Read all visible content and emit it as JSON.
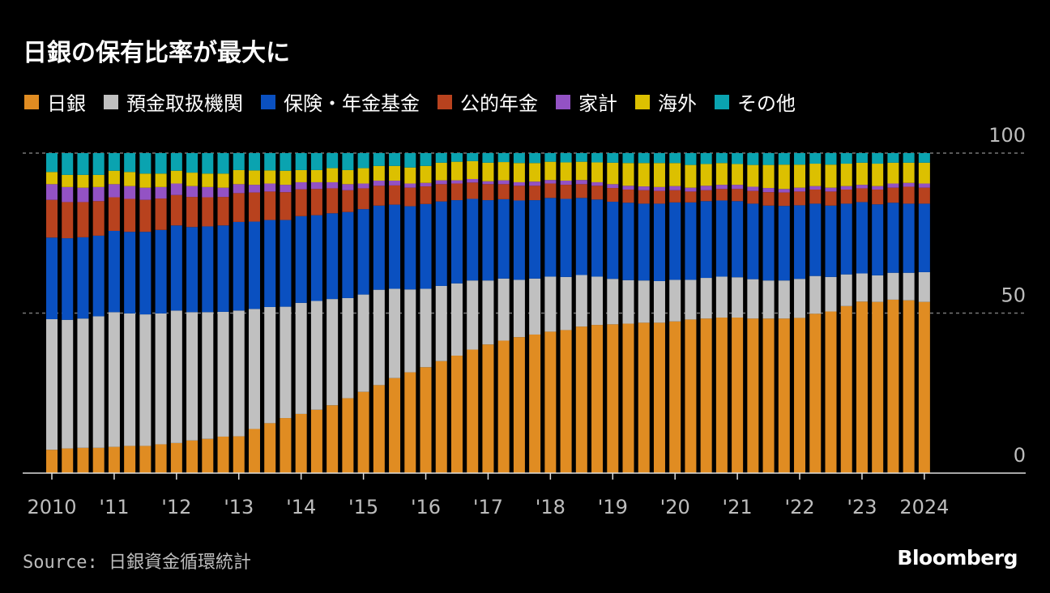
{
  "title": "日銀の保有比率が最大に",
  "source": "Source: 日銀資金循環統計",
  "logo": "Bloomberg",
  "chart_data": {
    "type": "bar",
    "stacked": true,
    "title": "日銀の保有比率が最大に",
    "xlabel": "",
    "ylabel": "",
    "ylim": [
      0,
      100
    ],
    "yticks": [
      "0",
      "50",
      "100"
    ],
    "grid": true,
    "legend": "top",
    "xtick_labels": [
      "2010",
      "'11",
      "'12",
      "'13",
      "'14",
      "'15",
      "'16",
      "'17",
      "'18",
      "'19",
      "'20",
      "'21",
      "'22",
      "'23",
      "2024"
    ],
    "categories": [
      "2010Q1",
      "2010Q2",
      "2010Q3",
      "2010Q4",
      "2011Q1",
      "2011Q2",
      "2011Q3",
      "2011Q4",
      "2012Q1",
      "2012Q2",
      "2012Q3",
      "2012Q4",
      "2013Q1",
      "2013Q2",
      "2013Q3",
      "2013Q4",
      "2014Q1",
      "2014Q2",
      "2014Q3",
      "2014Q4",
      "2015Q1",
      "2015Q2",
      "2015Q3",
      "2015Q4",
      "2016Q1",
      "2016Q2",
      "2016Q3",
      "2016Q4",
      "2017Q1",
      "2017Q2",
      "2017Q3",
      "2017Q4",
      "2018Q1",
      "2018Q2",
      "2018Q3",
      "2018Q4",
      "2019Q1",
      "2019Q2",
      "2019Q3",
      "2019Q4",
      "2020Q1",
      "2020Q2",
      "2020Q3",
      "2020Q4",
      "2021Q1",
      "2021Q2",
      "2021Q3",
      "2021Q4",
      "2022Q1",
      "2022Q2",
      "2022Q3",
      "2022Q4",
      "2023Q1",
      "2023Q2",
      "2023Q3",
      "2023Q4",
      "2024Q1"
    ],
    "series": [
      {
        "name": "日銀",
        "color": "#e08c22",
        "values": [
          7.3,
          7.7,
          7.9,
          7.9,
          8.2,
          8.5,
          8.5,
          9.0,
          9.4,
          10.2,
          10.7,
          11.4,
          11.5,
          13.8,
          15.6,
          17.2,
          18.5,
          19.8,
          21.2,
          23.4,
          25.4,
          27.5,
          29.7,
          31.5,
          33.1,
          35.0,
          36.7,
          38.6,
          40.2,
          41.4,
          42.5,
          43.3,
          44.2,
          44.7,
          45.8,
          46.3,
          46.5,
          46.7,
          47.0,
          47.0,
          47.4,
          48.0,
          48.3,
          48.6,
          48.6,
          48.3,
          48.3,
          48.3,
          48.5,
          49.8,
          50.5,
          52.2,
          53.6,
          53.5,
          54.2,
          54.0,
          53.5
        ]
      },
      {
        "name": "預金取扱機関",
        "color": "#c0c0c0",
        "values": [
          40.8,
          40.2,
          40.4,
          41.1,
          42.1,
          41.4,
          41.1,
          40.9,
          41.4,
          40.1,
          39.6,
          39.0,
          39.3,
          37.5,
          36.3,
          34.8,
          34.7,
          34.0,
          33.2,
          31.3,
          30.4,
          29.8,
          27.9,
          25.9,
          24.5,
          23.5,
          22.6,
          21.6,
          20.0,
          19.4,
          17.9,
          17.5,
          17.2,
          16.6,
          16.1,
          15.1,
          14.2,
          13.6,
          13.2,
          13.0,
          13.0,
          12.4,
          12.7,
          12.8,
          12.6,
          12.3,
          11.9,
          11.9,
          12.2,
          11.8,
          10.8,
          9.9,
          8.8,
          8.3,
          8.4,
          8.6,
          9.3
        ]
      },
      {
        "name": "保険・年金基金",
        "color": "#0a50c0",
        "values": [
          25.5,
          25.5,
          25.4,
          25.2,
          25.4,
          25.5,
          25.8,
          26.1,
          26.6,
          26.6,
          26.8,
          27.0,
          27.7,
          27.3,
          27.2,
          27.1,
          27.1,
          26.8,
          26.8,
          26.9,
          26.7,
          26.3,
          26.3,
          26.0,
          26.5,
          26.4,
          26.0,
          25.5,
          25.1,
          24.8,
          24.8,
          24.5,
          24.6,
          24.4,
          24.1,
          24.1,
          24.1,
          24.2,
          24.0,
          24.2,
          24.2,
          24.2,
          24.0,
          23.8,
          23.8,
          23.6,
          23.4,
          23.3,
          23.0,
          22.6,
          22.3,
          22.1,
          22.3,
          22.2,
          21.9,
          21.6,
          21.4
        ]
      },
      {
        "name": "公的年金",
        "color": "#b8421e",
        "values": [
          11.8,
          11.3,
          11.0,
          10.8,
          10.5,
          10.3,
          10.0,
          9.8,
          9.5,
          9.4,
          9.1,
          8.9,
          9.0,
          9.1,
          8.9,
          8.7,
          8.4,
          8.2,
          7.8,
          6.8,
          6.5,
          6.2,
          6.0,
          5.8,
          5.5,
          5.4,
          5.2,
          5.1,
          5.0,
          4.7,
          4.6,
          4.5,
          4.5,
          4.4,
          4.3,
          4.3,
          4.3,
          4.1,
          4.2,
          4.0,
          3.8,
          3.4,
          3.4,
          3.6,
          3.8,
          4.0,
          4.2,
          4.2,
          4.3,
          4.4,
          4.4,
          4.4,
          4.3,
          4.6,
          4.7,
          5.3,
          5.0
        ]
      },
      {
        "name": "家計",
        "color": "#9352c4",
        "values": [
          4.9,
          4.7,
          4.5,
          4.4,
          4.1,
          4.0,
          3.8,
          3.6,
          3.6,
          3.4,
          3.2,
          2.9,
          2.8,
          2.4,
          2.5,
          2.3,
          2.2,
          2.1,
          1.9,
          1.9,
          1.5,
          1.6,
          1.5,
          1.3,
          1.1,
          1.2,
          1.0,
          1.1,
          0.9,
          1.2,
          1.1,
          1.3,
          1.1,
          1.3,
          1.3,
          1.1,
          1.2,
          1.2,
          1.2,
          1.2,
          1.3,
          1.2,
          1.4,
          1.3,
          1.3,
          1.3,
          1.3,
          1.1,
          1.2,
          1.1,
          1.2,
          1.1,
          1.1,
          1.1,
          1.3,
          1.2,
          1.3
        ]
      },
      {
        "name": "海外",
        "color": "#dcc000",
        "values": [
          3.8,
          3.8,
          4.0,
          3.8,
          4.2,
          4.4,
          4.4,
          4.2,
          4.0,
          4.2,
          4.2,
          4.4,
          4.4,
          4.5,
          4.1,
          4.4,
          3.8,
          3.8,
          4.4,
          4.4,
          4.8,
          4.6,
          4.6,
          5.0,
          5.3,
          5.5,
          5.8,
          5.6,
          5.8,
          5.7,
          6.0,
          5.8,
          5.7,
          5.7,
          5.7,
          6.2,
          6.7,
          7.1,
          7.3,
          7.5,
          7.2,
          7.1,
          6.8,
          6.8,
          6.5,
          6.8,
          7.2,
          7.6,
          7.2,
          7.0,
          7.2,
          7.0,
          6.9,
          7.0,
          6.5,
          6.3,
          6.5
        ]
      },
      {
        "name": "その他",
        "color": "#0aa3b0",
        "values": [
          5.9,
          6.8,
          6.8,
          6.8,
          5.5,
          5.9,
          6.4,
          6.4,
          5.5,
          6.1,
          6.4,
          6.4,
          5.3,
          5.4,
          5.4,
          5.5,
          5.3,
          5.3,
          4.7,
          5.3,
          4.7,
          4.0,
          4.0,
          4.5,
          4.0,
          3.0,
          2.7,
          2.5,
          3.0,
          2.8,
          3.1,
          3.1,
          2.7,
          2.9,
          2.7,
          2.9,
          3.0,
          3.1,
          3.1,
          3.1,
          3.1,
          3.7,
          3.4,
          3.1,
          3.4,
          3.7,
          3.7,
          3.6,
          3.6,
          3.3,
          3.6,
          3.3,
          3.0,
          3.3,
          3.0,
          3.0,
          3.0
        ]
      }
    ]
  }
}
